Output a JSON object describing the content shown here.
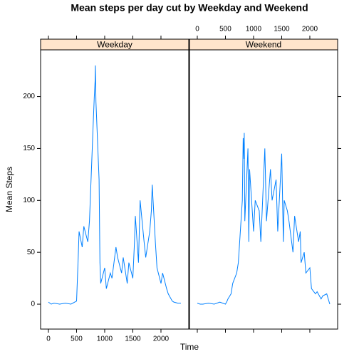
{
  "chart_data": {
    "type": "line",
    "title": "Mean steps per day cut by Weekday and Weekend",
    "x_label": "Time",
    "y_label": "Mean Steps",
    "x": [
      0,
      50,
      100,
      200,
      300,
      400,
      500,
      530,
      545,
      600,
      630,
      700,
      730,
      800,
      815,
      830,
      835,
      845,
      900,
      915,
      930,
      1000,
      1030,
      1100,
      1130,
      1200,
      1230,
      1300,
      1330,
      1400,
      1430,
      1500,
      1530,
      1545,
      1600,
      1630,
      1700,
      1730,
      1800,
      1830,
      1845,
      1900,
      1930,
      2000,
      2030,
      2100,
      2130,
      2200,
      2230,
      2300,
      2355
    ],
    "series": [
      {
        "name": "Weekday",
        "color": "#0080ff",
        "values": [
          2,
          0,
          1,
          0,
          1,
          0,
          3,
          45,
          70,
          55,
          75,
          60,
          80,
          180,
          200,
          215,
          230,
          195,
          120,
          40,
          20,
          35,
          15,
          30,
          25,
          55,
          45,
          30,
          45,
          20,
          40,
          25,
          60,
          85,
          40,
          100,
          60,
          45,
          70,
          90,
          115,
          60,
          35,
          20,
          30,
          15,
          10,
          3,
          2,
          1,
          1
        ]
      },
      {
        "name": "Weekend",
        "color": "#0080ff",
        "values": [
          1,
          0,
          0,
          1,
          0,
          2,
          0,
          3,
          5,
          10,
          20,
          30,
          40,
          100,
          160,
          140,
          165,
          80,
          150,
          60,
          130,
          70,
          100,
          90,
          60,
          150,
          80,
          130,
          100,
          120,
          70,
          145,
          60,
          100,
          90,
          80,
          50,
          85,
          60,
          70,
          40,
          50,
          30,
          35,
          15,
          10,
          12,
          5,
          8,
          10,
          0
        ]
      }
    ],
    "strip_color": "#ffe5cc",
    "xlim": [
      -139,
      2494
    ],
    "xticks": [
      0,
      500,
      1000,
      1500,
      2000
    ],
    "ylim": [
      -24,
      245
    ],
    "yticks": [
      0,
      50,
      100,
      150,
      200
    ]
  }
}
